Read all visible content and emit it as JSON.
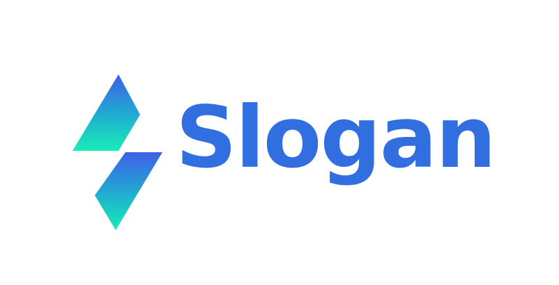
{
  "logo": {
    "wordmark": "Slogan",
    "wordmark_color": "#316FE0",
    "icon_name": "lightning-bolt-icon",
    "gradient_top": "#3F5FE6",
    "gradient_mid": "#21A8D2",
    "gradient_bottom": "#17EEB7"
  }
}
